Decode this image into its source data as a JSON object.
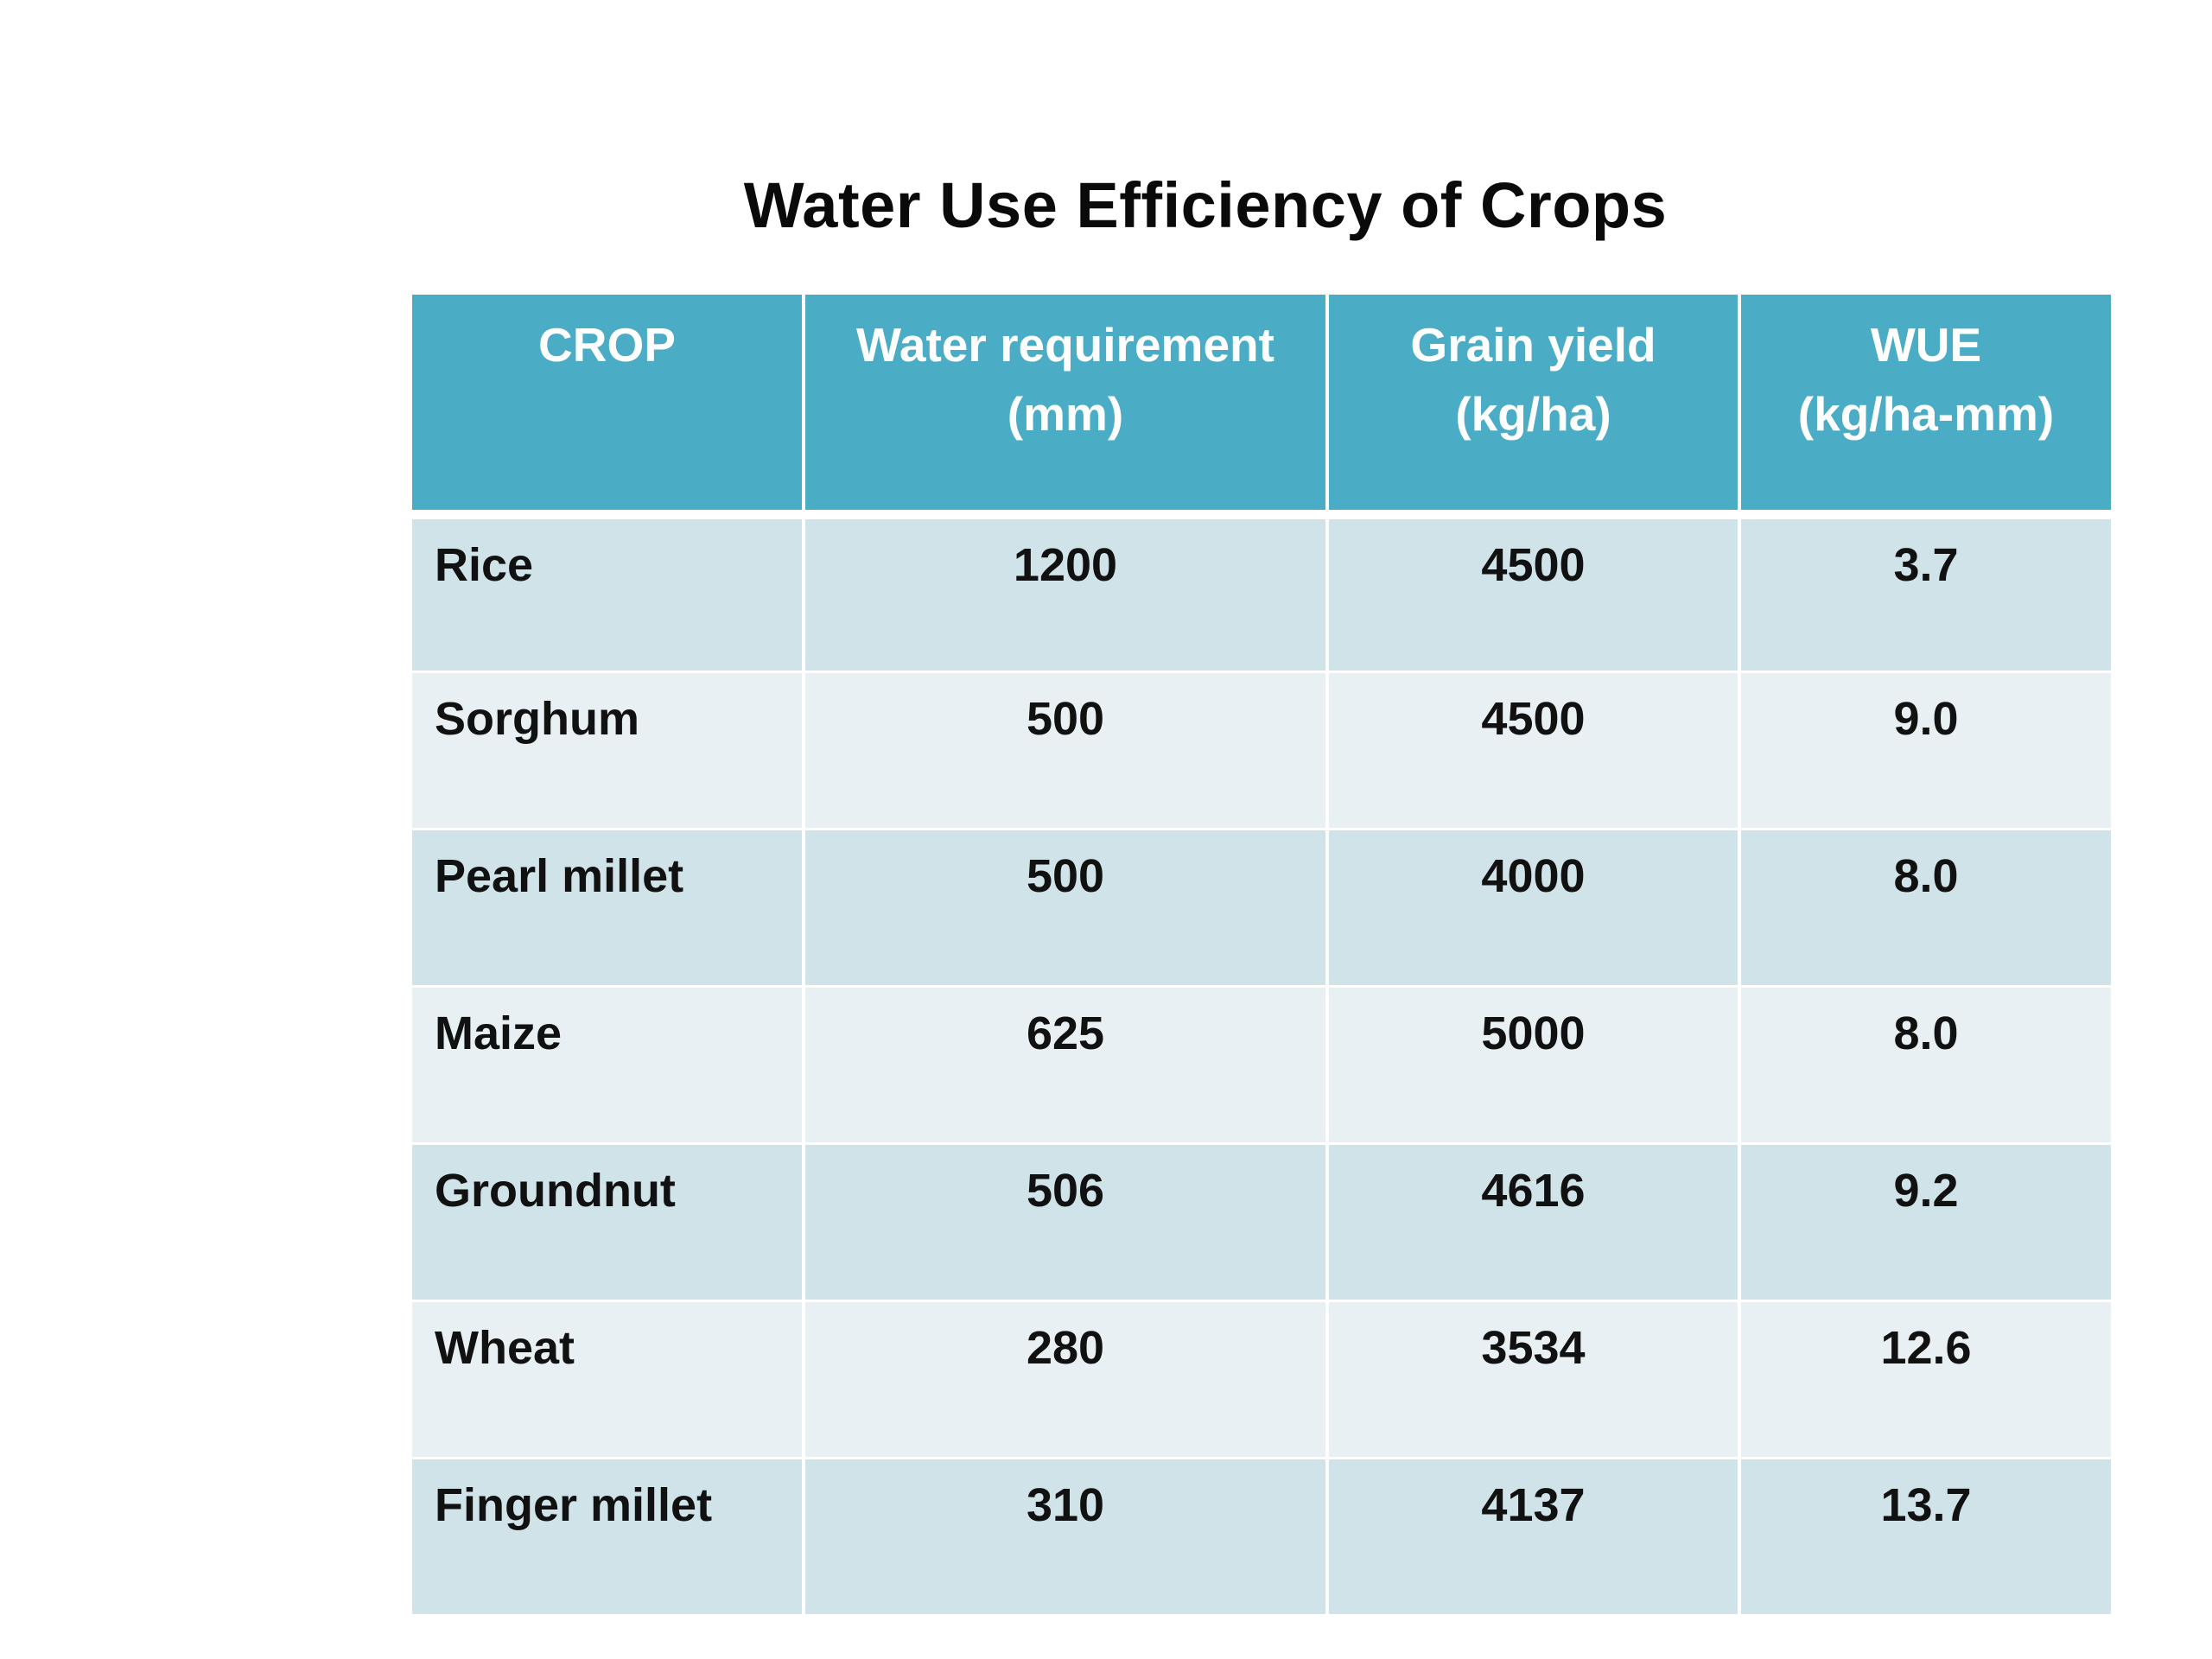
{
  "title": "Water Use Efficiency of Crops",
  "table": {
    "headers": [
      {
        "line1": "CROP",
        "line2": ""
      },
      {
        "line1": "Water requirement",
        "line2": "(mm)"
      },
      {
        "line1": "Grain yield",
        "line2": "(kg/ha)"
      },
      {
        "line1": "WUE",
        "line2": "(kg/ha-mm)"
      }
    ],
    "rows": [
      [
        "Rice",
        "1200",
        "4500",
        "3.7"
      ],
      [
        "Sorghum",
        "500",
        "4500",
        "9.0"
      ],
      [
        "Pearl millet",
        "500",
        "4000",
        "8.0"
      ],
      [
        "Maize",
        "625",
        "5000",
        "8.0"
      ],
      [
        "Groundnut",
        "506",
        "4616",
        "9.2"
      ],
      [
        "Wheat",
        "280",
        "3534",
        "12.6"
      ],
      [
        "Finger millet",
        "310",
        "4137",
        "13.7"
      ]
    ]
  },
  "colors": {
    "header_bg": "#4bacc6",
    "row_odd_bg": "#d0e3e8",
    "row_even_bg": "#e8f0f3"
  }
}
